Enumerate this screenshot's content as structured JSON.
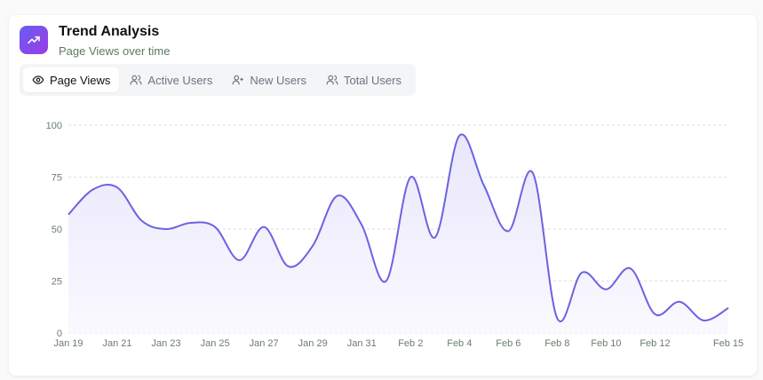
{
  "header": {
    "title": "Trend Analysis",
    "subtitle": "Page Views over time",
    "icon": "trending-up-icon"
  },
  "tabs": [
    {
      "label": "Page Views",
      "icon": "eye-icon",
      "active": true
    },
    {
      "label": "Active Users",
      "icon": "users-icon",
      "active": false
    },
    {
      "label": "New Users",
      "icon": "user-plus-icon",
      "active": false
    },
    {
      "label": "Total Users",
      "icon": "users-icon",
      "active": false
    }
  ],
  "colors": {
    "line": "#6b63e0",
    "fill_top": "#e9e7fb",
    "fill_bottom": "#faf9ff",
    "grid": "#dddddd",
    "accent_from": "#6a5cf0",
    "accent_to": "#9a3de8"
  },
  "chart_data": {
    "type": "area",
    "title": "Trend Analysis",
    "subtitle": "Page Views over time",
    "x": [
      "Jan 19",
      "Jan 20",
      "Jan 21",
      "Jan 22",
      "Jan 23",
      "Jan 24",
      "Jan 25",
      "Jan 26",
      "Jan 27",
      "Jan 28",
      "Jan 29",
      "Jan 30",
      "Jan 31",
      "Feb 1",
      "Feb 2",
      "Feb 3",
      "Feb 4",
      "Feb 5",
      "Feb 6",
      "Feb 7",
      "Feb 8",
      "Feb 9",
      "Feb 10",
      "Feb 11",
      "Feb 12",
      "Feb 13",
      "Feb 14",
      "Feb 15"
    ],
    "series": [
      {
        "name": "Page Views",
        "values": [
          57,
          69,
          70,
          54,
          50,
          53,
          51,
          35,
          51,
          32,
          42,
          66,
          52,
          25,
          75,
          46,
          95,
          71,
          49,
          77,
          7,
          29,
          21,
          31,
          9,
          15,
          6,
          12
        ]
      }
    ],
    "x_tick_labels": [
      "Jan 19",
      "Jan 21",
      "Jan 23",
      "Jan 25",
      "Jan 27",
      "Jan 29",
      "Jan 31",
      "Feb 2",
      "Feb 4",
      "Feb 6",
      "Feb 8",
      "Feb 10",
      "Feb 12",
      "Feb 15"
    ],
    "y_ticks": [
      0,
      25,
      50,
      75,
      100
    ],
    "ylim": [
      0,
      100
    ],
    "xlabel": "",
    "ylabel": "",
    "grid": true,
    "legend": "none"
  }
}
